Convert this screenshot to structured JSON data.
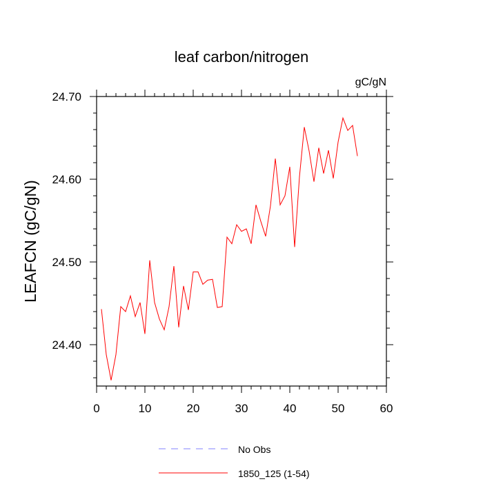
{
  "chart_data": {
    "type": "line",
    "title": "leaf carbon/nitrogen",
    "units_label": "gC/gN",
    "ylabel": "LEAFCN  (gC/gN)",
    "xlabel": "",
    "xlim": [
      0,
      60
    ],
    "ylim": [
      24.35,
      24.7
    ],
    "x_ticks": [
      0,
      10,
      20,
      30,
      40,
      50,
      60
    ],
    "x_tick_labels": [
      "0",
      "10",
      "20",
      "30",
      "40",
      "50",
      "60"
    ],
    "y_ticks": [
      24.4,
      24.5,
      24.6,
      24.7
    ],
    "y_tick_labels": [
      "24.40",
      "24.50",
      "24.60",
      "24.70"
    ],
    "grid": false,
    "legend_position": "bottom",
    "series": [
      {
        "name": "1850_125 (1-54)",
        "color": "#ff0000",
        "style": "solid",
        "x": [
          1,
          2,
          3,
          4,
          5,
          6,
          7,
          8,
          9,
          10,
          11,
          12,
          13,
          14,
          15,
          16,
          17,
          18,
          19,
          20,
          21,
          22,
          23,
          24,
          25,
          26,
          27,
          28,
          29,
          30,
          31,
          32,
          33,
          34,
          35,
          36,
          37,
          38,
          39,
          40,
          41,
          42,
          43,
          44,
          45,
          46,
          47,
          48,
          49,
          50,
          51,
          52,
          53,
          54
        ],
        "values": [
          24.443,
          24.388,
          24.357,
          24.388,
          24.446,
          24.44,
          24.459,
          24.434,
          24.451,
          24.413,
          24.502,
          24.451,
          24.431,
          24.418,
          24.446,
          24.495,
          24.421,
          24.471,
          24.442,
          24.488,
          24.488,
          24.473,
          24.478,
          24.479,
          24.445,
          24.446,
          24.53,
          24.522,
          24.545,
          24.537,
          24.54,
          24.522,
          24.569,
          24.549,
          24.531,
          24.568,
          24.625,
          24.569,
          24.58,
          24.615,
          24.518,
          24.603,
          24.663,
          24.634,
          24.597,
          24.638,
          24.607,
          24.635,
          24.601,
          24.645,
          24.674,
          24.659,
          24.665,
          24.628
        ]
      },
      {
        "name": "No Obs",
        "color": "#8080ff",
        "style": "dashed",
        "x": [],
        "values": []
      }
    ]
  }
}
